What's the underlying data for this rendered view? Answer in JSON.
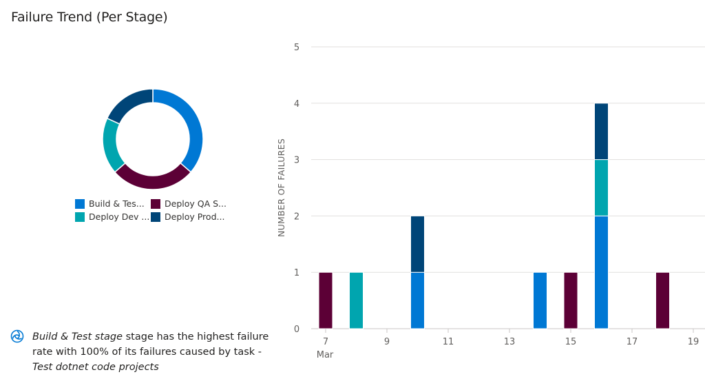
{
  "page": {
    "title": "Failure Trend (Per Stage)"
  },
  "donut": {
    "legend": [
      {
        "label": "Build & Tes...",
        "color": "#0078d4"
      },
      {
        "label": "Deploy QA S...",
        "color": "#5c0036"
      },
      {
        "label": "Deploy Dev ...",
        "color": "#00a5af"
      },
      {
        "label": "Deploy Prod...",
        "color": "#004578"
      }
    ]
  },
  "insight": {
    "icon": "insight-icon",
    "stage_name": "Build & Test stage",
    "text_middle": " stage has the highest failure rate with 100% of its failures caused by task - ",
    "task_name": "Test dotnet code projects"
  },
  "chart_data": [
    {
      "type": "pie",
      "subtype": "donut",
      "title": "Failure Trend (Per Stage)",
      "categories": [
        "Build & Test stage",
        "Deploy QA Stage",
        "Deploy Dev Stage",
        "Deploy Prod Stage"
      ],
      "legend_labels": [
        "Build & Tes...",
        "Deploy QA S...",
        "Deploy Dev ...",
        "Deploy Prod..."
      ],
      "values": [
        4,
        3,
        2,
        2
      ],
      "colors": [
        "#0078d4",
        "#5c0036",
        "#00a5af",
        "#004578"
      ],
      "legend_position": "bottom"
    },
    {
      "type": "bar",
      "stacked": true,
      "title": "",
      "xlabel": "",
      "ylabel": "NUMBER OF FAILURES",
      "x": [
        7,
        8,
        10,
        14,
        15,
        16,
        18
      ],
      "x_month_label": "Mar",
      "xlim": [
        6.8,
        19.3
      ],
      "x_ticks": [
        "7",
        "9",
        "11",
        "13",
        "15",
        "17",
        "19"
      ],
      "ylim": [
        0,
        5
      ],
      "y_ticks": [
        "0",
        "1",
        "2",
        "3",
        "4",
        "5"
      ],
      "grid": true,
      "series": [
        {
          "name": "Build & Test stage",
          "color": "#0078d4",
          "values": [
            0,
            0,
            1,
            1,
            0,
            2,
            0
          ]
        },
        {
          "name": "Deploy QA Stage",
          "color": "#5c0036",
          "values": [
            1,
            0,
            0,
            0,
            1,
            0,
            1
          ]
        },
        {
          "name": "Deploy Dev Stage",
          "color": "#00a5af",
          "values": [
            0,
            1,
            0,
            0,
            0,
            1,
            0
          ]
        },
        {
          "name": "Deploy Prod Stage",
          "color": "#004578",
          "values": [
            0,
            0,
            1,
            0,
            0,
            1,
            0
          ]
        }
      ]
    }
  ]
}
